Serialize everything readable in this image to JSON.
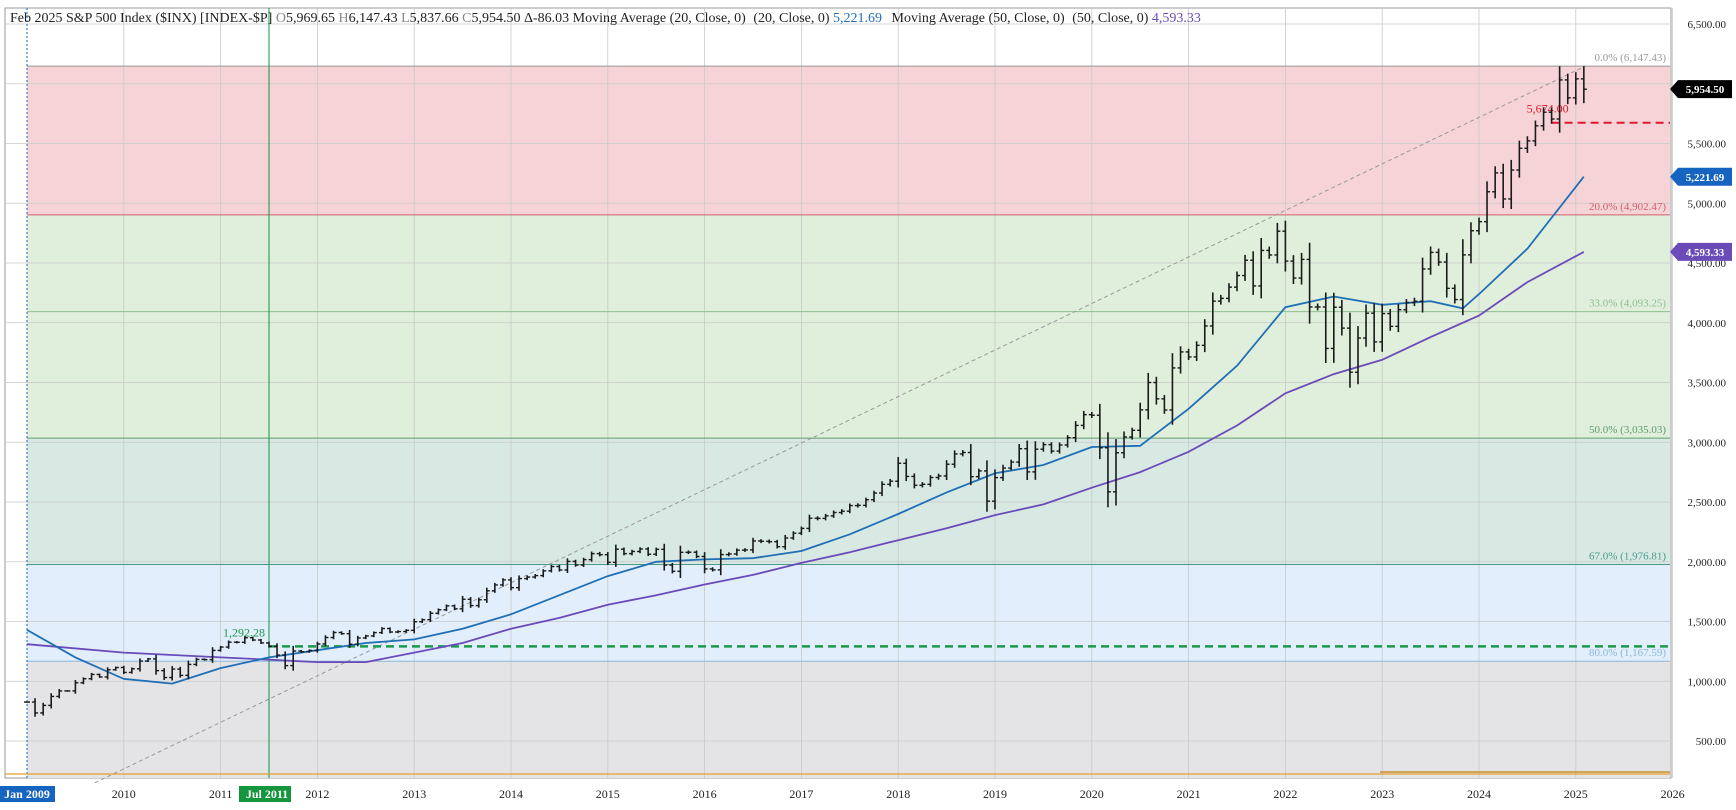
{
  "header": {
    "title": "Feb 2025 S&P 500 Index ($INX) [INDEX-$P]",
    "o_key": "O",
    "o_val": "5,969.65",
    "h_key": "H",
    "h_val": "6,147.43",
    "l_key": "L",
    "l_val": "5,837.66",
    "c_key": "C",
    "c_val": "5,954.50",
    "change": "Δ-86.03",
    "ma20_label": "Moving Average (20, Close, 0)",
    "ma20_params": "(20, Close, 0)",
    "ma20_value": "5,221.69",
    "ma50_label": "Moving Average (50, Close, 0)",
    "ma50_params": "(50, Close, 0)",
    "ma50_value": "4,593.33"
  },
  "colors": {
    "ma20": "#1f6fb5",
    "ma50": "#6a4bb8",
    "bar": "#1a1a1a",
    "support": "#1a9a4a",
    "resistance": "#e0182f",
    "orange": "#e0a030",
    "zone_red": "#f6d3d6",
    "zone_green": "#e0eedc",
    "zone_teal": "#d8e9e4",
    "zone_blue": "#e2eefb",
    "zone_gray": "#e4e4e6",
    "close_tag": "#000000",
    "ma20_tag": "#1565c0",
    "ma50_tag": "#6a4bb8",
    "date_tag_blue": "#1565c0",
    "date_tag_green": "#14953e"
  },
  "chart_data": {
    "type": "ohlc",
    "period": "monthly",
    "symbol": "$INX",
    "x_tick_labels": [
      "2010",
      "2011",
      "2012",
      "2013",
      "2014",
      "2015",
      "2016",
      "2017",
      "2018",
      "2019",
      "2020",
      "2021",
      "2022",
      "2023",
      "2024",
      "2025",
      "2026"
    ],
    "x_tick_values": [
      2010,
      2011,
      2012,
      2013,
      2014,
      2015,
      2016,
      2017,
      2018,
      2019,
      2020,
      2021,
      2022,
      2023,
      2024,
      2025,
      2026
    ],
    "y_ticks": [
      500,
      1000,
      1500,
      2000,
      2500,
      3000,
      3500,
      4000,
      4500,
      5000,
      5500,
      6000,
      6500
    ],
    "y_tick_labels": [
      "500.00",
      "1,000.00",
      "1,500.00",
      "2,000.00",
      "2,500.00",
      "3,000.00",
      "3,500.00",
      "4,000.00",
      "4,500.00",
      "5,000.00",
      "5,500.00",
      "6,000.00",
      "6,500.00"
    ],
    "ylim": [
      150,
      6600
    ],
    "xlim": [
      2009.0,
      2026.1
    ],
    "closes": [
      [
        2009.0,
        826
      ],
      [
        2009.083,
        735
      ],
      [
        2009.167,
        798
      ],
      [
        2009.25,
        873
      ],
      [
        2009.333,
        919
      ],
      [
        2009.417,
        919
      ],
      [
        2009.5,
        987
      ],
      [
        2009.583,
        1021
      ],
      [
        2009.667,
        1057
      ],
      [
        2009.75,
        1036
      ],
      [
        2009.833,
        1096
      ],
      [
        2009.917,
        1115
      ],
      [
        2010.0,
        1074
      ],
      [
        2010.083,
        1104
      ],
      [
        2010.167,
        1169
      ],
      [
        2010.25,
        1187
      ],
      [
        2010.333,
        1089
      ],
      [
        2010.417,
        1031
      ],
      [
        2010.5,
        1102
      ],
      [
        2010.583,
        1049
      ],
      [
        2010.667,
        1141
      ],
      [
        2010.75,
        1183
      ],
      [
        2010.833,
        1181
      ],
      [
        2010.917,
        1258
      ],
      [
        2011.0,
        1286
      ],
      [
        2011.083,
        1327
      ],
      [
        2011.167,
        1326
      ],
      [
        2011.25,
        1364
      ],
      [
        2011.333,
        1345
      ],
      [
        2011.417,
        1321
      ],
      [
        2011.5,
        1292
      ],
      [
        2011.583,
        1219
      ],
      [
        2011.667,
        1131
      ],
      [
        2011.75,
        1253
      ],
      [
        2011.833,
        1247
      ],
      [
        2011.917,
        1258
      ],
      [
        2012.0,
        1312
      ],
      [
        2012.083,
        1366
      ],
      [
        2012.167,
        1408
      ],
      [
        2012.25,
        1398
      ],
      [
        2012.333,
        1310
      ],
      [
        2012.417,
        1362
      ],
      [
        2012.5,
        1379
      ],
      [
        2012.583,
        1407
      ],
      [
        2012.667,
        1441
      ],
      [
        2012.75,
        1412
      ],
      [
        2012.833,
        1416
      ],
      [
        2012.917,
        1426
      ],
      [
        2013.0,
        1498
      ],
      [
        2013.083,
        1515
      ],
      [
        2013.167,
        1569
      ],
      [
        2013.25,
        1598
      ],
      [
        2013.333,
        1631
      ],
      [
        2013.417,
        1606
      ],
      [
        2013.5,
        1686
      ],
      [
        2013.583,
        1633
      ],
      [
        2013.667,
        1682
      ],
      [
        2013.75,
        1757
      ],
      [
        2013.833,
        1806
      ],
      [
        2013.917,
        1848
      ],
      [
        2014.0,
        1783
      ],
      [
        2014.083,
        1859
      ],
      [
        2014.167,
        1872
      ],
      [
        2014.25,
        1884
      ],
      [
        2014.333,
        1924
      ],
      [
        2014.417,
        1960
      ],
      [
        2014.5,
        1931
      ],
      [
        2014.583,
        2003
      ],
      [
        2014.667,
        1972
      ],
      [
        2014.75,
        2018
      ],
      [
        2014.833,
        2068
      ],
      [
        2014.917,
        2059
      ],
      [
        2015.0,
        1995
      ],
      [
        2015.083,
        2105
      ],
      [
        2015.167,
        2068
      ],
      [
        2015.25,
        2086
      ],
      [
        2015.333,
        2107
      ],
      [
        2015.417,
        2063
      ],
      [
        2015.5,
        2104
      ],
      [
        2015.583,
        1972
      ],
      [
        2015.667,
        1920
      ],
      [
        2015.75,
        2079
      ],
      [
        2015.833,
        2080
      ],
      [
        2015.917,
        2044
      ],
      [
        2016.0,
        1940
      ],
      [
        2016.083,
        1932
      ],
      [
        2016.167,
        2060
      ],
      [
        2016.25,
        2065
      ],
      [
        2016.333,
        2097
      ],
      [
        2016.417,
        2099
      ],
      [
        2016.5,
        2174
      ],
      [
        2016.583,
        2171
      ],
      [
        2016.667,
        2168
      ],
      [
        2016.75,
        2126
      ],
      [
        2016.833,
        2199
      ],
      [
        2016.917,
        2239
      ],
      [
        2017.0,
        2279
      ],
      [
        2017.083,
        2364
      ],
      [
        2017.167,
        2363
      ],
      [
        2017.25,
        2384
      ],
      [
        2017.333,
        2412
      ],
      [
        2017.417,
        2423
      ],
      [
        2017.5,
        2470
      ],
      [
        2017.583,
        2472
      ],
      [
        2017.667,
        2519
      ],
      [
        2017.75,
        2575
      ],
      [
        2017.833,
        2648
      ],
      [
        2017.917,
        2674
      ],
      [
        2018.0,
        2824
      ],
      [
        2018.083,
        2714
      ],
      [
        2018.167,
        2640
      ],
      [
        2018.25,
        2648
      ],
      [
        2018.333,
        2705
      ],
      [
        2018.417,
        2718
      ],
      [
        2018.5,
        2816
      ],
      [
        2018.583,
        2902
      ],
      [
        2018.667,
        2914
      ],
      [
        2018.75,
        2712
      ],
      [
        2018.833,
        2760
      ],
      [
        2018.917,
        2507
      ],
      [
        2019.0,
        2704
      ],
      [
        2019.083,
        2784
      ],
      [
        2019.167,
        2834
      ],
      [
        2019.25,
        2946
      ],
      [
        2019.333,
        2752
      ],
      [
        2019.417,
        2942
      ],
      [
        2019.5,
        2980
      ],
      [
        2019.583,
        2926
      ],
      [
        2019.667,
        2977
      ],
      [
        2019.75,
        3038
      ],
      [
        2019.833,
        3141
      ],
      [
        2019.917,
        3231
      ],
      [
        2020.0,
        3226
      ],
      [
        2020.083,
        2954
      ],
      [
        2020.167,
        2585
      ],
      [
        2020.25,
        2912
      ],
      [
        2020.333,
        3044
      ],
      [
        2020.417,
        3100
      ],
      [
        2020.5,
        3271
      ],
      [
        2020.583,
        3500
      ],
      [
        2020.667,
        3363
      ],
      [
        2020.75,
        3270
      ],
      [
        2020.833,
        3622
      ],
      [
        2020.917,
        3756
      ],
      [
        2021.0,
        3714
      ],
      [
        2021.083,
        3811
      ],
      [
        2021.167,
        3973
      ],
      [
        2021.25,
        4181
      ],
      [
        2021.333,
        4204
      ],
      [
        2021.417,
        4298
      ],
      [
        2021.5,
        4395
      ],
      [
        2021.583,
        4523
      ],
      [
        2021.667,
        4308
      ],
      [
        2021.75,
        4605
      ],
      [
        2021.833,
        4567
      ],
      [
        2021.917,
        4766
      ],
      [
        2022.0,
        4516
      ],
      [
        2022.083,
        4374
      ],
      [
        2022.167,
        4530
      ],
      [
        2022.25,
        4132
      ],
      [
        2022.333,
        4132
      ],
      [
        2022.417,
        3785
      ],
      [
        2022.5,
        4130
      ],
      [
        2022.583,
        3955
      ],
      [
        2022.667,
        3586
      ],
      [
        2022.75,
        3872
      ],
      [
        2022.833,
        4080
      ],
      [
        2022.917,
        3840
      ],
      [
        2023.0,
        4077
      ],
      [
        2023.083,
        3970
      ],
      [
        2023.167,
        4109
      ],
      [
        2023.25,
        4169
      ],
      [
        2023.333,
        4180
      ],
      [
        2023.417,
        4450
      ],
      [
        2023.5,
        4589
      ],
      [
        2023.583,
        4508
      ],
      [
        2023.667,
        4288
      ],
      [
        2023.75,
        4194
      ],
      [
        2023.833,
        4568
      ],
      [
        2023.917,
        4770
      ],
      [
        2024.0,
        4846
      ],
      [
        2024.083,
        5096
      ],
      [
        2024.167,
        5254
      ],
      [
        2024.25,
        5036
      ],
      [
        2024.333,
        5278
      ],
      [
        2024.417,
        5460
      ],
      [
        2024.5,
        5522
      ],
      [
        2024.583,
        5648
      ],
      [
        2024.667,
        5762
      ],
      [
        2024.75,
        5705
      ],
      [
        2024.833,
        6032
      ],
      [
        2024.917,
        5882
      ],
      [
        2025.0,
        6041
      ],
      [
        2025.083,
        5954
      ]
    ],
    "last_bar": {
      "label": "Feb 2025",
      "open": 5969.65,
      "high": 6147.43,
      "low": 5837.66,
      "close": 5954.5
    },
    "ma20": {
      "name": "Moving Average (20, Close, 0)",
      "last": 5221.69,
      "points": [
        [
          2009.0,
          1430
        ],
        [
          2009.5,
          1200
        ],
        [
          2010.0,
          1020
        ],
        [
          2010.5,
          980
        ],
        [
          2011.0,
          1110
        ],
        [
          2011.5,
          1200
        ],
        [
          2012.0,
          1260
        ],
        [
          2012.5,
          1320
        ],
        [
          2013.0,
          1350
        ],
        [
          2013.5,
          1440
        ],
        [
          2014.0,
          1560
        ],
        [
          2014.5,
          1720
        ],
        [
          2015.0,
          1880
        ],
        [
          2015.5,
          2000
        ],
        [
          2016.0,
          2020
        ],
        [
          2016.5,
          2030
        ],
        [
          2017.0,
          2090
        ],
        [
          2017.5,
          2230
        ],
        [
          2018.0,
          2400
        ],
        [
          2018.5,
          2580
        ],
        [
          2019.0,
          2740
        ],
        [
          2019.5,
          2810
        ],
        [
          2020.0,
          2960
        ],
        [
          2020.5,
          2970
        ],
        [
          2021.0,
          3280
        ],
        [
          2021.5,
          3640
        ],
        [
          2022.0,
          4130
        ],
        [
          2022.5,
          4220
        ],
        [
          2023.0,
          4150
        ],
        [
          2023.5,
          4180
        ],
        [
          2023.833,
          4120
        ],
        [
          2024.0,
          4240
        ],
        [
          2024.5,
          4620
        ],
        [
          2025.083,
          5222
        ]
      ]
    },
    "ma50": {
      "name": "Moving Average (50, Close, 0)",
      "last": 4593.33,
      "points": [
        [
          2009.0,
          1310
        ],
        [
          2010.0,
          1240
        ],
        [
          2011.0,
          1200
        ],
        [
          2011.5,
          1180
        ],
        [
          2012.0,
          1160
        ],
        [
          2012.5,
          1160
        ],
        [
          2013.0,
          1240
        ],
        [
          2013.5,
          1320
        ],
        [
          2014.0,
          1440
        ],
        [
          2014.5,
          1530
        ],
        [
          2015.0,
          1640
        ],
        [
          2015.5,
          1720
        ],
        [
          2016.0,
          1810
        ],
        [
          2016.5,
          1890
        ],
        [
          2017.0,
          1990
        ],
        [
          2017.5,
          2080
        ],
        [
          2018.0,
          2180
        ],
        [
          2018.5,
          2280
        ],
        [
          2019.0,
          2390
        ],
        [
          2019.5,
          2480
        ],
        [
          2020.0,
          2620
        ],
        [
          2020.5,
          2750
        ],
        [
          2021.0,
          2920
        ],
        [
          2021.5,
          3140
        ],
        [
          2022.0,
          3410
        ],
        [
          2022.5,
          3570
        ],
        [
          2023.0,
          3690
        ],
        [
          2023.5,
          3880
        ],
        [
          2024.0,
          4060
        ],
        [
          2024.5,
          4340
        ],
        [
          2025.083,
          4593
        ]
      ]
    },
    "fibonacci": {
      "levels": [
        {
          "label": "0.0% (6,147.43)",
          "value": 6147.43
        },
        {
          "label": "20.0% (4,902.47)",
          "value": 4902.47
        },
        {
          "label": "33.0% (4,093.25)",
          "value": 4093.25
        },
        {
          "label": "50.0% (3,035.03)",
          "value": 3035.03
        },
        {
          "label": "67.0% (1,976.81)",
          "value": 1976.81
        },
        {
          "label": "80.0% (1,167.59)",
          "value": 1167.59
        }
      ]
    },
    "horizontal_lines": [
      {
        "label": "1,292.28",
        "value": 1292.28,
        "start": 2011.5
      },
      {
        "label": "5,674.00",
        "value": 5674.0,
        "start": 2024.75
      }
    ],
    "trendline": {
      "from": [
        2009.7,
        150
      ],
      "to": [
        2025.1,
        6147.43
      ]
    },
    "vertical_lines": [
      2009.0,
      2011.5
    ],
    "price_tags": [
      {
        "label": "5,954.50",
        "value": 5954.5
      },
      {
        "label": "5,221.69",
        "value": 5221.69
      },
      {
        "label": "4,593.33",
        "value": 4593.33
      }
    ],
    "date_tags": [
      {
        "label": "Jan 2009",
        "x": 2009.0
      },
      {
        "label": "Jul 2011",
        "x": 2011.5
      }
    ],
    "bottom_line_value": 210
  }
}
